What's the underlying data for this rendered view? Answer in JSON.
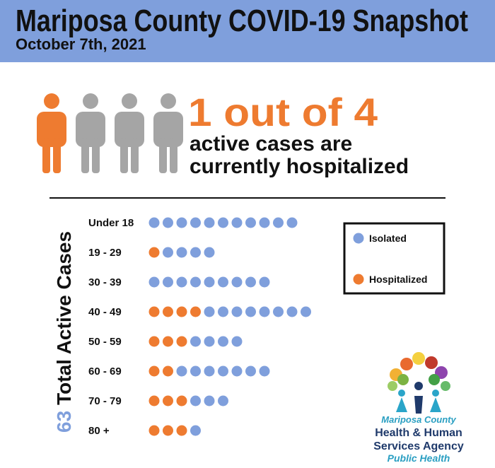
{
  "chart_data": {
    "type": "dot",
    "title": "Mariposa County COVID-19 Snapshot",
    "subtitle": "October 7th, 2021",
    "headline": "1 out of 4",
    "headline_text": [
      "active cases are",
      "currently hospitalized"
    ],
    "total": 63,
    "total_label": "Total Active Cases",
    "categories": [
      "Under 18",
      "19 - 29",
      "30 - 39",
      "40 - 49",
      "50 - 59",
      "60 - 69",
      "70 - 79",
      "80 +"
    ],
    "series": [
      {
        "name": "Isolated",
        "color": "#7f9fdc",
        "values": [
          11,
          4,
          9,
          8,
          4,
          7,
          3,
          1
        ]
      },
      {
        "name": "Hospitalized",
        "color": "#ee7b30",
        "values": [
          0,
          1,
          0,
          4,
          3,
          2,
          3,
          3
        ]
      }
    ],
    "logo": [
      "Mariposa County",
      "Health & Human",
      "Services Agency",
      "Public Health"
    ]
  }
}
